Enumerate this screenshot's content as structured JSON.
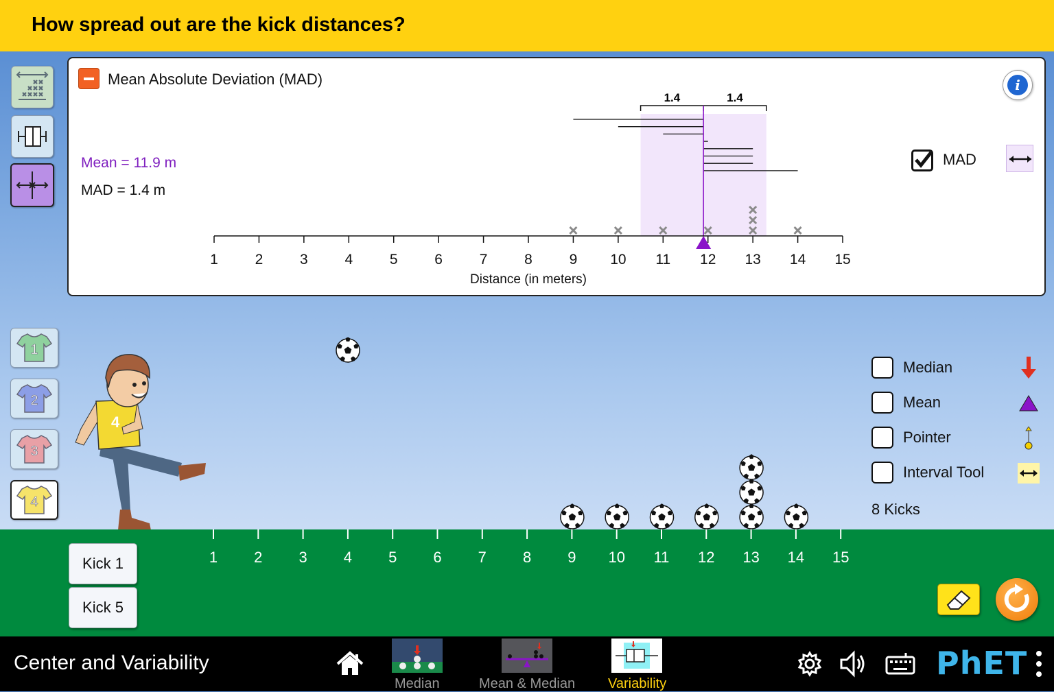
{
  "question": "How spread out are the kick distances?",
  "panel": {
    "title": "Mean Absolute Deviation (MAD)",
    "mean_readout": "Mean = 11.9 m",
    "mad_readout": "MAD = 1.4 m",
    "mad_checkbox_label": "MAD",
    "mad_checked": true,
    "bracket_left_label": "1.4",
    "bracket_right_label": "1.4",
    "axis_label": "Distance (in meters)",
    "axis_ticks": [
      "1",
      "2",
      "3",
      "4",
      "5",
      "6",
      "7",
      "8",
      "9",
      "10",
      "11",
      "12",
      "13",
      "14",
      "15"
    ]
  },
  "chart_data": {
    "type": "scatter",
    "x": [
      9,
      10,
      11,
      12,
      13,
      13,
      13,
      14
    ],
    "mean": 11.9,
    "mad": 1.4,
    "xlim": [
      1,
      15
    ],
    "xlabel": "Distance (in meters)"
  },
  "field": {
    "axis_ticks": [
      "1",
      "2",
      "3",
      "4",
      "5",
      "6",
      "7",
      "8",
      "9",
      "10",
      "11",
      "12",
      "13",
      "14",
      "15"
    ],
    "ball_counts": [
      {
        "x": 9,
        "count": 1
      },
      {
        "x": 10,
        "count": 1
      },
      {
        "x": 11,
        "count": 1
      },
      {
        "x": 12,
        "count": 1
      },
      {
        "x": 13,
        "count": 3
      },
      {
        "x": 14,
        "count": 1
      }
    ],
    "in_flight_ball_x": 4
  },
  "kick_buttons": {
    "kick1": "Kick 1",
    "kick5": "Kick 5"
  },
  "kicker_buttons": [
    "1",
    "2",
    "3",
    "4"
  ],
  "kicker_colors": [
    "#8fd19e",
    "#8c9ee6",
    "#e8a0a6",
    "#f6e36a"
  ],
  "selected_kicker": "4",
  "options": {
    "median": "Median",
    "mean": "Mean",
    "pointer": "Pointer",
    "interval_tool": "Interval Tool"
  },
  "kicks_count": "8 Kicks",
  "navbar": {
    "sim_title": "Center and Variability",
    "tabs": [
      "Median",
      "Mean & Median",
      "Variability"
    ],
    "active_tab": "Variability",
    "logo": "PhET"
  },
  "colors": {
    "accent": "#ffd110",
    "mean": "#8a14c8",
    "mad_fill": "#f2e6fb",
    "field": "#008a3e",
    "median_arrow": "#e03020"
  }
}
